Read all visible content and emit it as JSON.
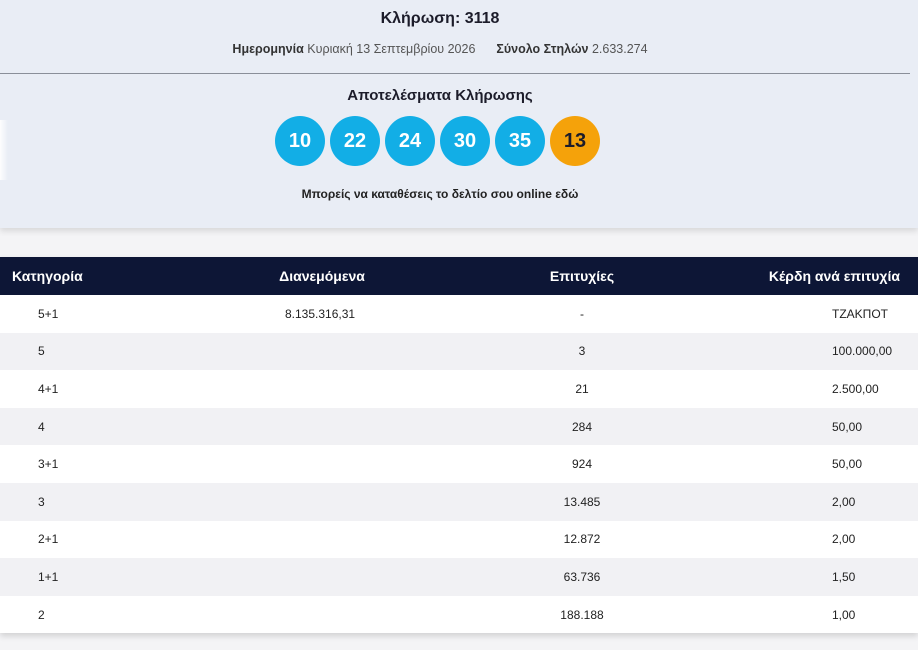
{
  "draw": {
    "title": "Κλήρωση: 3118",
    "date_label": "Ημερομηνία",
    "date_value": "Κυριακή 13 Σεπτεμβρίου 2026",
    "total_label": "Σύνολο Στηλών",
    "total_value": "2.633.274"
  },
  "results": {
    "title": "Αποτελέσματα Κλήρωσης",
    "numbers": [
      "10",
      "22",
      "24",
      "30",
      "35"
    ],
    "joker": "13",
    "colors": {
      "main_ball": "#12aee6",
      "joker_ball": "#f5a20a"
    },
    "online_text": "Μπορείς να καταθέσεις το δελτίο σου online εδώ"
  },
  "table": {
    "headers": [
      "Κατηγορία",
      "Διανεμόμενα",
      "Επιτυχίες",
      "Κέρδη ανά επιτυχία"
    ],
    "header_color": "#0d1636",
    "rows": [
      [
        "5+1",
        "8.135.316,31",
        "-",
        "ΤΖΑΚΠΟΤ"
      ],
      [
        "5",
        "",
        "3",
        "100.000,00"
      ],
      [
        "4+1",
        "",
        "21",
        "2.500,00"
      ],
      [
        "4",
        "",
        "284",
        "50,00"
      ],
      [
        "3+1",
        "",
        "924",
        "50,00"
      ],
      [
        "3",
        "",
        "13.485",
        "2,00"
      ],
      [
        "2+1",
        "",
        "12.872",
        "2,00"
      ],
      [
        "1+1",
        "",
        "63.736",
        "1,50"
      ],
      [
        "2",
        "",
        "188.188",
        "1,00"
      ]
    ]
  }
}
